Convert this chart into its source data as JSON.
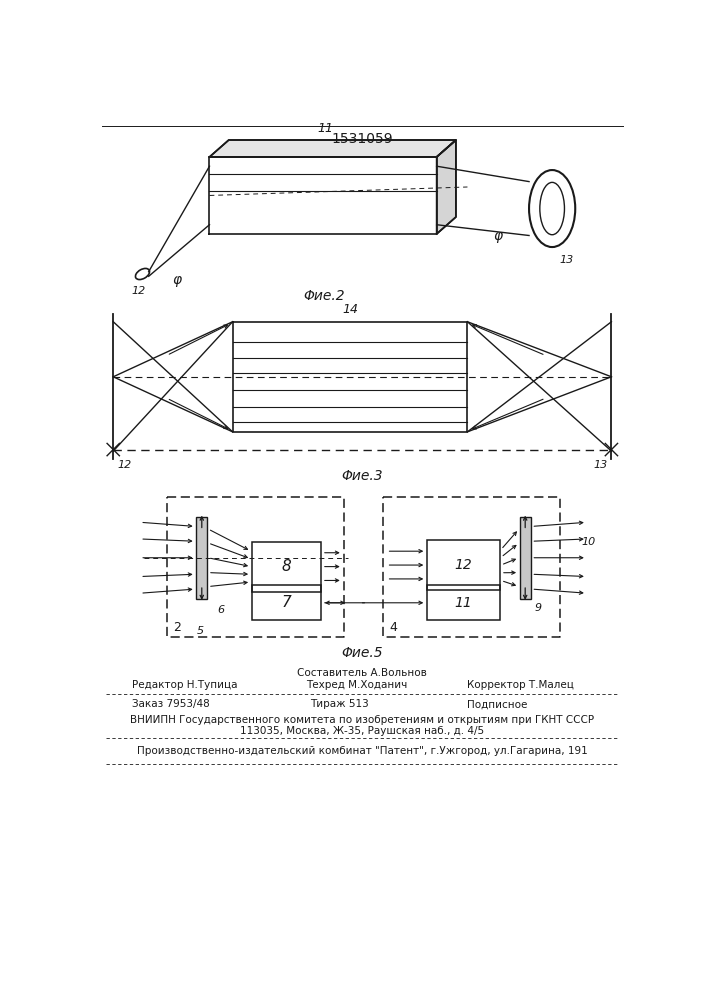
{
  "patent_number": "1531059",
  "fig2_label": "Φие.2",
  "fig3_label": "Φие.3",
  "fig5_label": "Φие.5",
  "editor_line": "Редактор Н.Тупица",
  "composer_line": "Составитель А.Вольнов",
  "techred_line": "Техред М.Ходанич",
  "corrector_line": "Корректор Т.Малец",
  "order_line": "Заказ 7953/48",
  "tirazh_line": "Тираж 513",
  "podpisnoe_line": "Подписное",
  "vniipn_line": "ВНИИПН Государственного комитета по изобретениям и открытиям при ГКНТ СССР",
  "address_line": "113035, Москва, Ж-35, Раушская наб., д. 4/5",
  "proizv_line": "Производственно-издательский комбинат \"Патент\", г.Ужгород, ул.Гагарина, 191",
  "bg_color": "#ffffff",
  "line_color": "#1a1a1a"
}
